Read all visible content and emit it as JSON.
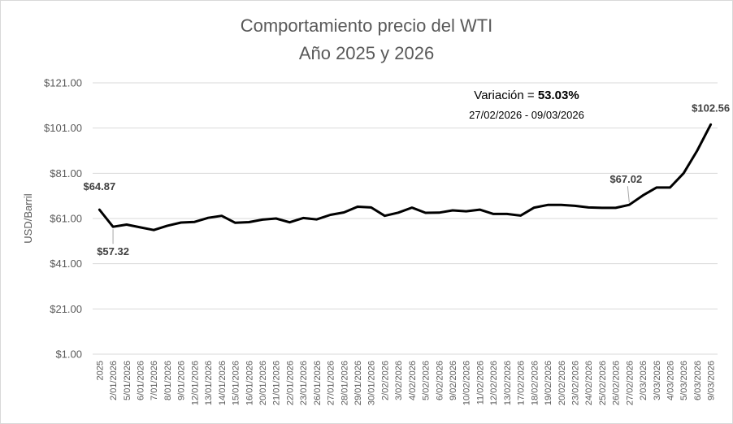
{
  "chart_data": {
    "type": "line",
    "title": "Comportamiento precio del WTI",
    "subtitle": "Año 2025 y 2026",
    "xlabel": "",
    "ylabel": "USD/Barril",
    "ylim": [
      1,
      121
    ],
    "yticks": [
      "$1.00",
      "$21.00",
      "$41.00",
      "$61.00",
      "$81.00",
      "$101.00",
      "$121.00"
    ],
    "grid": true,
    "categories": [
      "2025",
      "2/01/2026",
      "5/01/2026",
      "6/01/2026",
      "7/01/2026",
      "8/01/2026",
      "9/01/2026",
      "12/01/2026",
      "13/01/2026",
      "14/01/2026",
      "15/01/2026",
      "16/01/2026",
      "20/01/2026",
      "21/01/2026",
      "22/01/2026",
      "23/01/2026",
      "26/01/2026",
      "27/01/2026",
      "28/01/2026",
      "29/01/2026",
      "30/01/2026",
      "2/02/2026",
      "3/02/2026",
      "4/02/2026",
      "5/02/2026",
      "6/02/2026",
      "9/02/2026",
      "10/02/2026",
      "11/02/2026",
      "12/02/2026",
      "13/02/2026",
      "17/02/2026",
      "18/02/2026",
      "19/02/2026",
      "20/02/2026",
      "23/02/2026",
      "24/02/2026",
      "25/02/2026",
      "26/02/2026",
      "27/02/2026",
      "2/03/2026",
      "3/03/2026",
      "4/03/2026",
      "5/03/2026",
      "6/03/2026",
      "9/03/2026"
    ],
    "series": [
      {
        "values": [
          64.87,
          57.32,
          58.3,
          57.1,
          55.9,
          57.8,
          59.2,
          59.5,
          61.3,
          62.2,
          59.1,
          59.4,
          60.5,
          61.0,
          59.3,
          61.2,
          60.6,
          62.6,
          63.7,
          66.2,
          65.9,
          62.2,
          63.6,
          65.8,
          63.5,
          63.6,
          64.6,
          64.2,
          64.9,
          63.0,
          63.0,
          62.3,
          65.8,
          67.0,
          67.0,
          66.6,
          65.9,
          65.7,
          65.7,
          67.02,
          71.2,
          74.7,
          74.7,
          81.0,
          91.0,
          102.56
        ],
        "color": "#000000"
      }
    ],
    "annotations": [
      {
        "label": "$64.87",
        "category": "2025",
        "value": 64.87
      },
      {
        "label": "$57.32",
        "category": "2/01/2026",
        "value": 57.32
      },
      {
        "label": "$67.02",
        "category": "27/02/2026",
        "value": 67.02
      },
      {
        "label": "$102.56",
        "category": "9/03/2026",
        "value": 102.56
      }
    ],
    "variation": {
      "prefix": "Variación = ",
      "value": "53.03%",
      "dates": "27/02/2026 - 09/03/2026"
    }
  }
}
